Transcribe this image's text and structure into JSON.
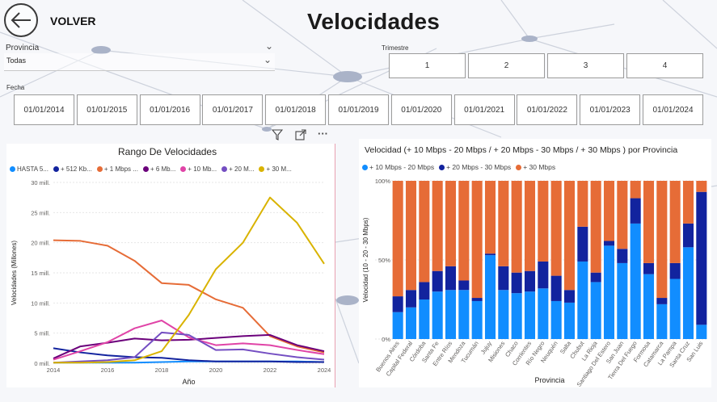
{
  "header": {
    "back_label": "VOLVER",
    "title": "Velocidades"
  },
  "filters": {
    "provincia_label": "Provincia",
    "provincia_value": "Todas",
    "trimestre_label": "Trimestre",
    "trimestres": [
      "1",
      "2",
      "3",
      "4"
    ],
    "fecha_label": "Fecha",
    "fechas": [
      "01/01/2014",
      "01/01/2015",
      "01/01/2016",
      "01/01/2017",
      "01/01/2018",
      "01/01/2019",
      "01/01/2020",
      "01/01/2021",
      "01/01/2022",
      "01/01/2023",
      "01/01/2024"
    ]
  },
  "visual_header_icons": [
    "filter-icon",
    "focus-mode-icon",
    "more-options-icon"
  ],
  "chart_data": [
    {
      "type": "line",
      "title": "Rango De Velocidades",
      "xlabel": "Año",
      "ylabel": "Velocidades (Millones)",
      "x": [
        2014,
        2015,
        2016,
        2017,
        2018,
        2019,
        2020,
        2021,
        2022,
        2023,
        2024
      ],
      "xticks": [
        "2014",
        "2016",
        "2018",
        "2020",
        "2022",
        "2024"
      ],
      "yticks": [
        "0 mill.",
        "5 mill.",
        "10 mill.",
        "15 mill.",
        "20 mill.",
        "25 mill.",
        "30 mill."
      ],
      "ylim": [
        0,
        30
      ],
      "grid": true,
      "legend_position": "top",
      "series": [
        {
          "name": "HASTA 5...",
          "color": "#118dff",
          "values": [
            0.1,
            0.1,
            0.1,
            0.1,
            0.2,
            0.3,
            0.3,
            0.3,
            0.3,
            0.3,
            0.2
          ]
        },
        {
          "name": "+ 512 Kb...",
          "color": "#12239e",
          "values": [
            2.5,
            1.8,
            1.3,
            1.0,
            0.9,
            0.5,
            0.3,
            0.3,
            0.3,
            0.2,
            0.2
          ]
        },
        {
          "name": "+ 1 Mbps ...",
          "color": "#e66c37",
          "values": [
            20.4,
            20.3,
            19.5,
            17.0,
            13.3,
            13.0,
            10.6,
            9.2,
            4.5,
            2.8,
            1.8
          ]
        },
        {
          "name": "+ 6 Mb...",
          "color": "#6b007b",
          "values": [
            0.8,
            2.8,
            3.4,
            4.1,
            3.8,
            3.9,
            4.2,
            4.5,
            4.7,
            3.0,
            2.0
          ]
        },
        {
          "name": "+ 10 Mb...",
          "color": "#e044a7",
          "values": [
            0.6,
            2.0,
            3.5,
            5.8,
            7.1,
            4.3,
            3.0,
            3.3,
            3.0,
            2.2,
            1.5
          ]
        },
        {
          "name": "+ 20 M...",
          "color": "#744ec2",
          "values": [
            0.1,
            0.3,
            0.5,
            1.0,
            5.1,
            4.7,
            2.2,
            2.3,
            1.6,
            1.0,
            0.6
          ]
        },
        {
          "name": "+ 30 M...",
          "color": "#d9b300",
          "values": [
            0.1,
            0.1,
            0.2,
            0.5,
            2.0,
            8.0,
            15.6,
            20.0,
            27.5,
            23.3,
            16.5
          ]
        }
      ]
    },
    {
      "type": "bar",
      "stacked": "100%",
      "title": "Velocidad (+ 10 Mbps - 20 Mbps / + 20 Mbps - 30 Mbps / + 30 Mbps ) por Provincia",
      "xlabel": "Provincia",
      "ylabel": "Velocidad (10 - 20 - 30 Mbps)",
      "yticks": [
        "0%",
        "50%",
        "100%"
      ],
      "ylim": [
        0,
        100
      ],
      "legend_position": "top",
      "categories": [
        "Buenos Aires",
        "Capital Federal",
        "Córdoba",
        "Santa Fe",
        "Entre Ríos",
        "Mendoza",
        "Tucumán",
        "Jujuy",
        "Misiones",
        "Chaco",
        "Corrientes",
        "Río Negro",
        "Neuquén",
        "Salta",
        "Chubut",
        "La Rioja",
        "Santiago Del Estero",
        "San Juan",
        "Tierra Del Fuego",
        "Formosa",
        "Catamarca",
        "La Pampa",
        "Santa Cruz",
        "San Luis"
      ],
      "series": [
        {
          "name": "+ 10 Mbps - 20 Mbps",
          "color": "#118dff",
          "values": [
            17,
            20,
            25,
            30,
            31,
            31,
            24,
            53,
            31,
            29,
            30,
            32,
            24,
            23,
            49,
            36,
            59,
            48,
            73,
            41,
            22,
            38,
            58,
            9
          ]
        },
        {
          "name": "+ 20 Mbps - 30 Mbps",
          "color": "#12239e",
          "values": [
            10,
            11,
            11,
            13,
            15,
            6,
            2,
            1,
            15,
            13,
            13,
            17,
            16,
            8,
            22,
            6,
            3,
            9,
            16,
            7,
            4,
            10,
            15,
            84
          ]
        },
        {
          "name": "+ 30 Mbps",
          "color": "#e66c37",
          "values": [
            73,
            69,
            64,
            57,
            54,
            63,
            74,
            46,
            54,
            58,
            57,
            51,
            60,
            69,
            29,
            58,
            38,
            43,
            11,
            52,
            74,
            52,
            27,
            7
          ]
        }
      ]
    }
  ]
}
